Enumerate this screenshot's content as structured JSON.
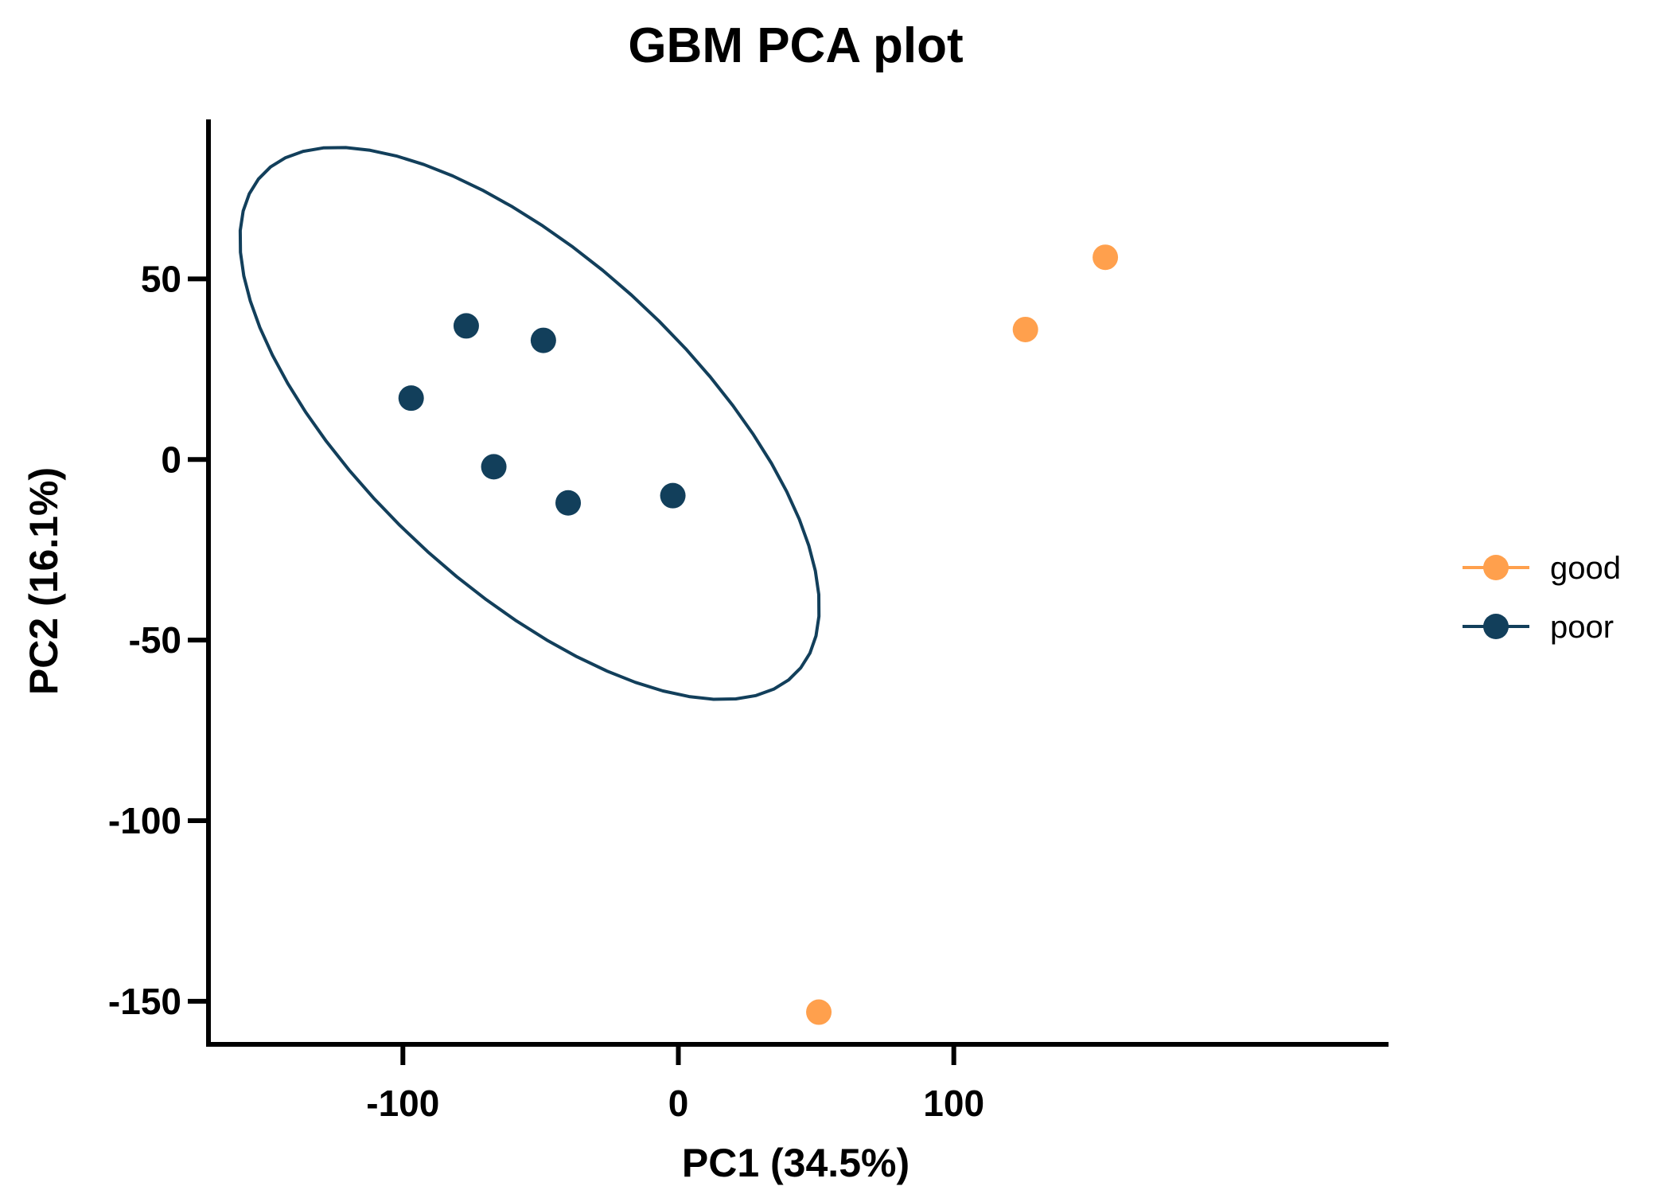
{
  "chart_data": {
    "type": "scatter",
    "title": "GBM PCA plot",
    "xlabel": "PC1 (34.5%)",
    "ylabel": "PC2 (16.1%)",
    "xlim": [
      -170,
      170
    ],
    "ylim": [
      -165,
      88
    ],
    "xticks": [
      -100,
      0,
      100
    ],
    "yticks": [
      50,
      0,
      -50,
      -100,
      -150
    ],
    "xtick_labels": [
      "-100",
      "0",
      "100"
    ],
    "ytick_labels": [
      "50",
      "0",
      "-50",
      "-100",
      "-150"
    ],
    "grid": false,
    "legend_position": "right",
    "series": [
      {
        "name": "good",
        "color": "#FFA04D",
        "points": [
          {
            "x": 51,
            "y": -153
          },
          {
            "x": 126,
            "y": 36
          },
          {
            "x": 155,
            "y": 56
          }
        ]
      },
      {
        "name": "poor",
        "color": "#123F5B",
        "points": [
          {
            "x": -97,
            "y": 17
          },
          {
            "x": -77,
            "y": 37
          },
          {
            "x": -49,
            "y": 33
          },
          {
            "x": -67,
            "y": -2
          },
          {
            "x": -40,
            "y": -12
          },
          {
            "x": -2,
            "y": -10
          }
        ],
        "ellipse": {
          "center": {
            "x": -54,
            "y": 10
          },
          "semi_axis_major": 120,
          "semi_axis_minor": 50,
          "angle_deg": -32
        }
      }
    ]
  }
}
